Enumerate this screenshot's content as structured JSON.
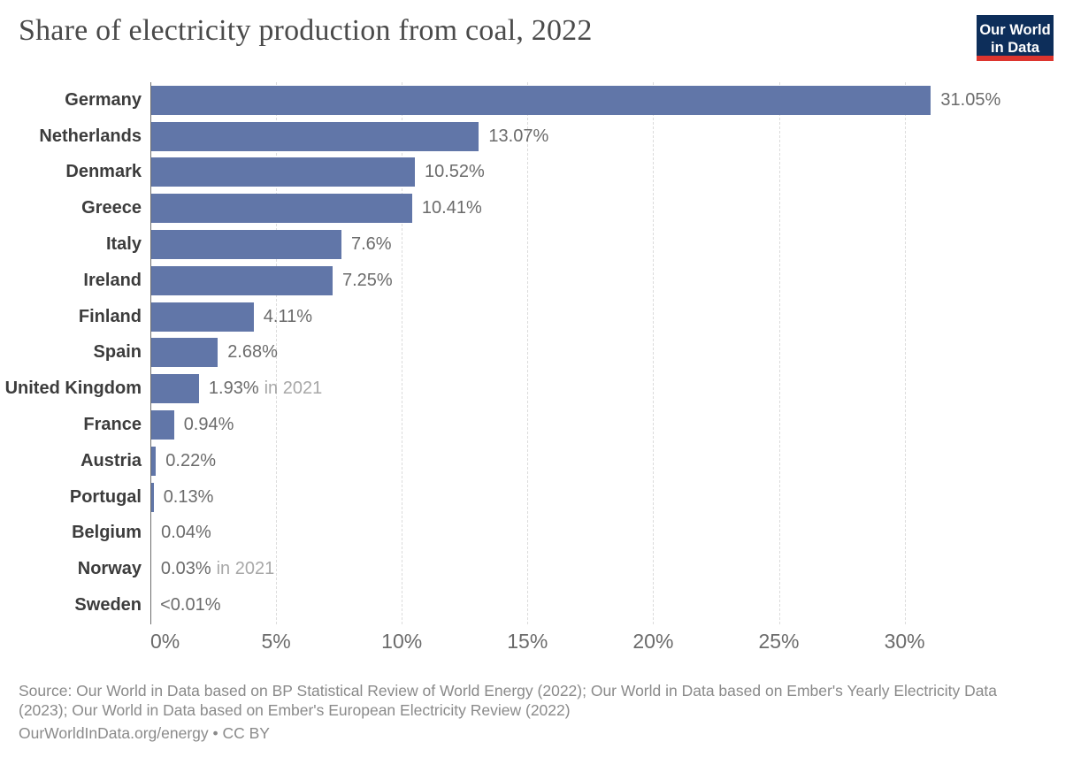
{
  "header": {
    "title": "Share of electricity production from coal, 2022",
    "logo": {
      "line1": "Our World",
      "line2": "in Data"
    }
  },
  "chart_data": {
    "type": "bar",
    "orientation": "horizontal",
    "title": "Share of electricity production from coal, 2022",
    "xlabel": "",
    "ylabel": "",
    "xlim": [
      0,
      35
    ],
    "grid": "vertical-dashed",
    "legend": "none",
    "bar_color": "#6176a8",
    "bars": [
      {
        "label": "Germany",
        "value": 31.05,
        "display": "31.05%",
        "note": ""
      },
      {
        "label": "Netherlands",
        "value": 13.07,
        "display": "13.07%",
        "note": ""
      },
      {
        "label": "Denmark",
        "value": 10.52,
        "display": "10.52%",
        "note": ""
      },
      {
        "label": "Greece",
        "value": 10.41,
        "display": "10.41%",
        "note": ""
      },
      {
        "label": "Italy",
        "value": 7.6,
        "display": "7.6%",
        "note": ""
      },
      {
        "label": "Ireland",
        "value": 7.25,
        "display": "7.25%",
        "note": ""
      },
      {
        "label": "Finland",
        "value": 4.11,
        "display": "4.11%",
        "note": ""
      },
      {
        "label": "Spain",
        "value": 2.68,
        "display": "2.68%",
        "note": ""
      },
      {
        "label": "United Kingdom",
        "value": 1.93,
        "display": "1.93%",
        "note": "in 2021"
      },
      {
        "label": "France",
        "value": 0.94,
        "display": "0.94%",
        "note": ""
      },
      {
        "label": "Austria",
        "value": 0.22,
        "display": "0.22%",
        "note": ""
      },
      {
        "label": "Portugal",
        "value": 0.13,
        "display": "0.13%",
        "note": ""
      },
      {
        "label": "Belgium",
        "value": 0.04,
        "display": "0.04%",
        "note": ""
      },
      {
        "label": "Norway",
        "value": 0.03,
        "display": "0.03%",
        "note": "in 2021"
      },
      {
        "label": "Sweden",
        "value": 0.005,
        "display": "<0.01%",
        "note": ""
      }
    ],
    "x_ticks": [
      {
        "label": "0%",
        "value": 0
      },
      {
        "label": "5%",
        "value": 5
      },
      {
        "label": "10%",
        "value": 10
      },
      {
        "label": "15%",
        "value": 15
      },
      {
        "label": "20%",
        "value": 20
      },
      {
        "label": "25%",
        "value": 25
      },
      {
        "label": "30%",
        "value": 30
      }
    ]
  },
  "footer": {
    "source": "Source: Our World in Data based on BP Statistical Review of World Energy (2022); Our World in Data based on Ember's Yearly Electricity Data (2023); Our World in Data based on Ember's European Electricity Review (2022)",
    "link_line": "OurWorldInData.org/energy • CC BY"
  },
  "colors": {
    "bar": "#6176a8",
    "axis_line": "#6e6e6e",
    "gridline": "#dcdcdc",
    "logo_navy": "#0d2e5a",
    "logo_red": "#dd352e"
  }
}
